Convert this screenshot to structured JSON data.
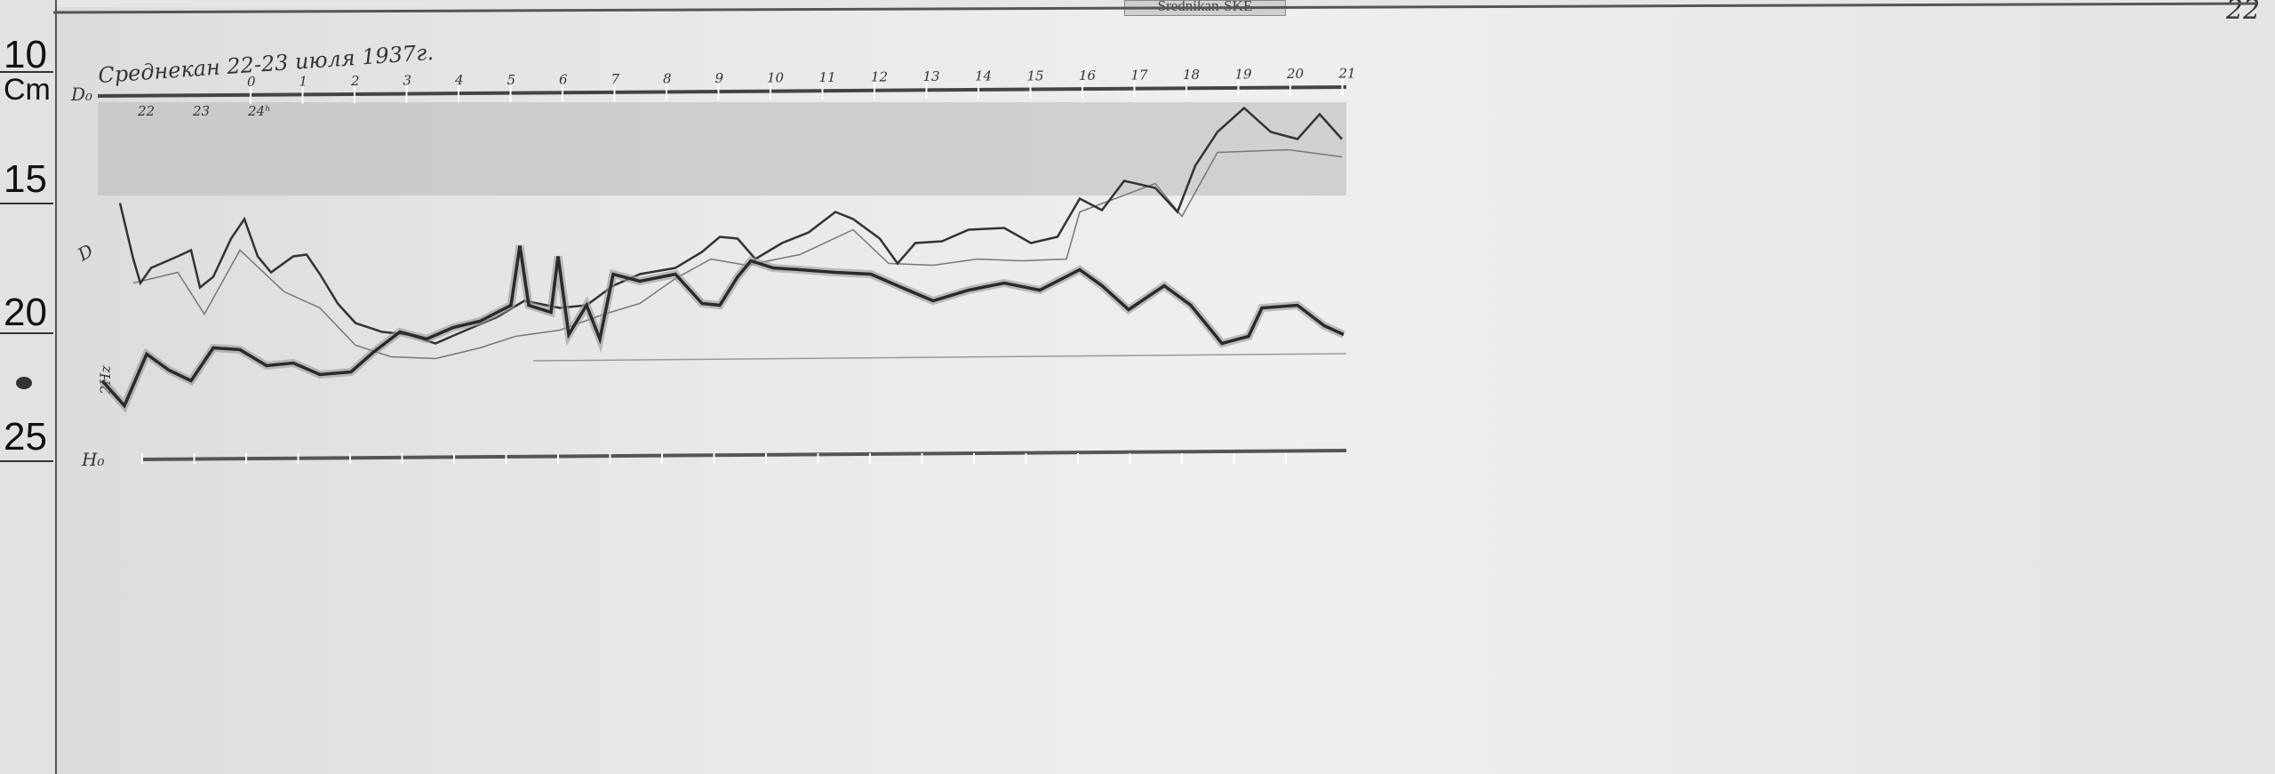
{
  "header_tag": "Srednikan-SKE",
  "page_number": "22",
  "ruler": {
    "unit": "Cm",
    "labels": [
      "10",
      "15",
      "20",
      "25"
    ]
  },
  "title": "Среднекан 22-23 июля 1937г.",
  "baselines": {
    "top": "D₀",
    "bottom": "H₀"
  },
  "trace_labels": {
    "d": "D",
    "h": "2Hz"
  },
  "hour_marks_top": [
    "0",
    "1",
    "2",
    "3",
    "4",
    "5",
    "6",
    "7",
    "8",
    "9",
    "10",
    "11",
    "12",
    "13",
    "14",
    "15",
    "16",
    "17",
    "18",
    "19",
    "20",
    "21"
  ],
  "hour_marks_bottom": [
    "22",
    "23",
    "24ʰ"
  ],
  "colors": {
    "paper": "#e9e9e9",
    "trace": "#333333",
    "band": "#b8b8b8"
  }
}
